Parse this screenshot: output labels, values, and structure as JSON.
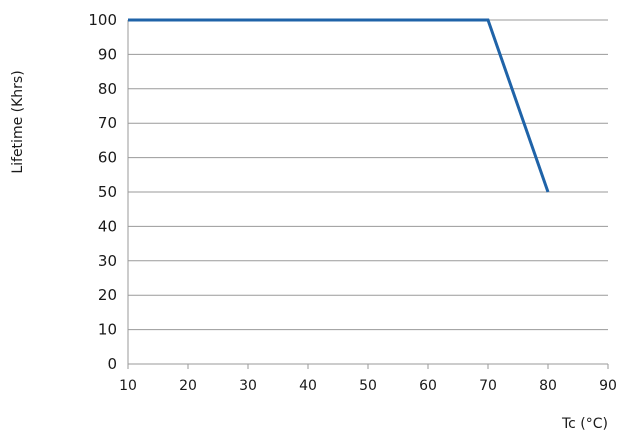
{
  "chart_data": {
    "type": "line",
    "title": "",
    "xlabel": "Tc (°C)",
    "ylabel": "Lifetime (Khrs)",
    "xlim": [
      10,
      90
    ],
    "ylim": [
      0,
      100
    ],
    "xticks": [
      10,
      20,
      30,
      40,
      50,
      60,
      70,
      80,
      90
    ],
    "yticks": [
      0,
      10,
      20,
      30,
      40,
      50,
      60,
      70,
      80,
      90,
      100
    ],
    "grid": "horizontal",
    "line_color": "#1f63a8",
    "grid_color": "#9a9a9a",
    "series": [
      {
        "x": [
          10,
          70,
          80
        ],
        "y": [
          100,
          100,
          50
        ]
      }
    ]
  }
}
